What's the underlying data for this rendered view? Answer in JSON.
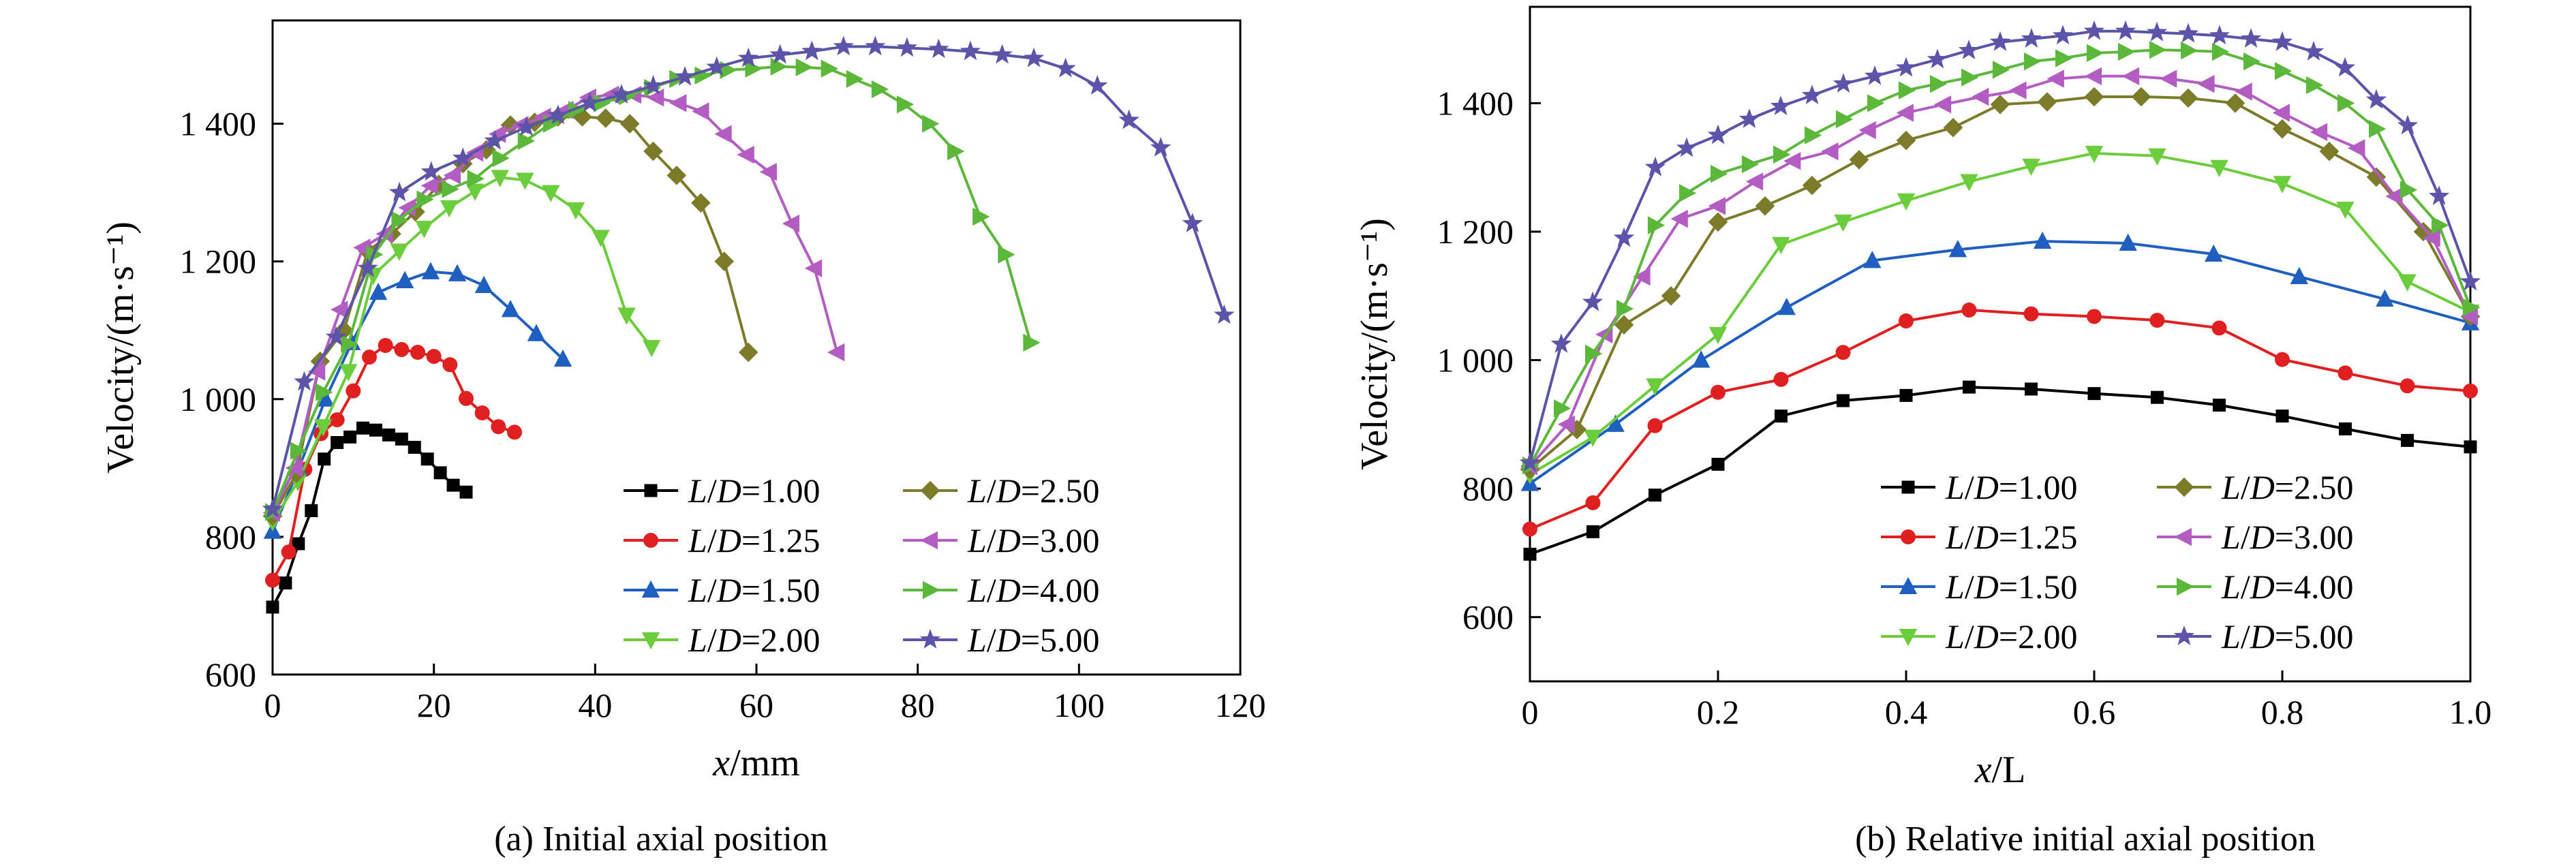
{
  "colors": {
    "L/D=1.00": "#000000",
    "L/D=1.25": "#e02020",
    "L/D=1.50": "#1f5fbf",
    "L/D=2.00": "#6ccd3c",
    "L/D=2.50": "#7b7b2a",
    "L/D=3.00": "#b35cc2",
    "L/D=4.00": "#5cb83a",
    "L/D=5.00": "#5c54a8"
  },
  "markers": {
    "L/D=1.00": "square",
    "L/D=1.25": "circle",
    "L/D=1.50": "triangle-up",
    "L/D=2.00": "triangle-down",
    "L/D=2.50": "diamond",
    "L/D=3.00": "triangle-left",
    "L/D=4.00": "triangle-right",
    "L/D=5.00": "star"
  },
  "chart_data": [
    {
      "type": "line",
      "caption": "(a) Initial axial position",
      "xlabel_italic": "x",
      "xlabel_unit": "/mm",
      "ylabel": "Velocity/(m·s⁻¹)",
      "xlim": [
        0,
        120
      ],
      "ylim": [
        600,
        1550
      ],
      "xticks": [
        0,
        20,
        40,
        60,
        80,
        100,
        120
      ],
      "xtick_labels": [
        "0",
        "20",
        "40",
        "60",
        "80",
        "100",
        "120"
      ],
      "yticks": [
        600,
        800,
        1000,
        1200,
        1400
      ],
      "ytick_labels": [
        "600",
        "800",
        "1 000",
        "1 200",
        "1 400"
      ],
      "legend_position": "bottom-right",
      "series": [
        {
          "name": "L/D=1.00",
          "x": [
            0,
            1.6,
            3.2,
            4.8,
            6.4,
            8,
            9.6,
            11.2,
            12.8,
            14.4,
            16,
            17.6,
            19.2,
            20.8,
            22.4,
            24
          ],
          "y": [
            698,
            733,
            790,
            838,
            913,
            937,
            945,
            958,
            955,
            948,
            942,
            930,
            913,
            893,
            875,
            865
          ]
        },
        {
          "name": "L/D=1.25",
          "x": [
            0,
            2,
            4,
            6,
            8,
            10,
            12,
            14,
            16,
            18,
            20,
            22,
            24,
            26,
            28,
            30
          ],
          "y": [
            737,
            778,
            898,
            950,
            970,
            1012,
            1061,
            1078,
            1072,
            1068,
            1062,
            1050,
            1001,
            980,
            960,
            952
          ]
        },
        {
          "name": "L/D=1.50",
          "x": [
            0,
            3.27,
            6.55,
            9.82,
            13.1,
            16.4,
            19.6,
            22.9,
            26.2,
            29.5,
            32.7,
            36
          ],
          "y": [
            808,
            900,
            1000,
            1082,
            1155,
            1172,
            1185,
            1182,
            1165,
            1130,
            1095,
            1058
          ]
        },
        {
          "name": "L/D=2.00",
          "x": [
            0,
            3.13,
            6.27,
            9.4,
            12.5,
            15.7,
            18.8,
            21.9,
            25.1,
            28.2,
            31.3,
            34.5,
            37.6,
            40.7,
            43.9,
            47
          ],
          "y": [
            822,
            880,
            960,
            1040,
            1180,
            1215,
            1248,
            1278,
            1302,
            1322,
            1318,
            1300,
            1275,
            1235,
            1122,
            1075
          ]
        },
        {
          "name": "L/D=2.50",
          "x": [
            0,
            2.95,
            5.9,
            8.85,
            11.8,
            14.75,
            17.7,
            20.6,
            23.6,
            26.5,
            29.5,
            32.5,
            35.4,
            38.4,
            41.3,
            44.3,
            47.2,
            50.1,
            53.1,
            56,
            59
          ],
          "y": [
            830,
            892,
            1055,
            1100,
            1215,
            1240,
            1272,
            1312,
            1342,
            1362,
            1398,
            1402,
            1410,
            1410,
            1408,
            1400,
            1360,
            1325,
            1285,
            1200,
            1068
          ]
        },
        {
          "name": "L/D=3.00",
          "x": [
            0,
            2.8,
            5.6,
            8.4,
            11.2,
            14,
            16.8,
            19.6,
            22.4,
            25.2,
            28,
            30.8,
            33.6,
            36.4,
            39.2,
            42,
            44.8,
            47.6,
            50.4,
            53.2,
            56,
            58.8,
            61.6,
            64.4,
            67.2,
            70
          ],
          "y": [
            835,
            900,
            1040,
            1130,
            1220,
            1240,
            1278,
            1310,
            1325,
            1358,
            1385,
            1398,
            1410,
            1420,
            1438,
            1442,
            1442,
            1438,
            1430,
            1418,
            1385,
            1355,
            1330,
            1255,
            1190,
            1068
          ]
        },
        {
          "name": "L/D=4.00",
          "x": [
            0,
            3.13,
            6.27,
            9.4,
            12.53,
            15.67,
            18.8,
            21.93,
            25.07,
            28.2,
            31.33,
            34.47,
            37.6,
            40.73,
            43.87,
            47,
            50.13,
            53.27,
            56.4,
            59.53,
            62.67,
            65.8,
            68.93,
            72.07,
            75.2,
            78.33,
            81.47,
            84.6,
            87.73,
            90.87,
            94
          ],
          "y": [
            836,
            925,
            1010,
            1080,
            1210,
            1260,
            1290,
            1305,
            1320,
            1350,
            1375,
            1400,
            1420,
            1430,
            1440,
            1452,
            1465,
            1470,
            1478,
            1480,
            1483,
            1482,
            1480,
            1465,
            1450,
            1428,
            1400,
            1360,
            1265,
            1210,
            1082
          ]
        },
        {
          "name": "L/D=5.00",
          "x": [
            0,
            3.93,
            7.87,
            11.8,
            15.73,
            19.67,
            23.6,
            27.53,
            31.47,
            35.4,
            39.33,
            43.27,
            47.2,
            51.13,
            55.07,
            59,
            62.93,
            66.87,
            70.8,
            74.73,
            78.67,
            82.6,
            86.53,
            90.47,
            94.4,
            98.33,
            102.27,
            106.2,
            110.13,
            114.07,
            118
          ],
          "y": [
            840,
            1025,
            1090,
            1190,
            1300,
            1330,
            1350,
            1375,
            1395,
            1412,
            1430,
            1442,
            1455,
            1468,
            1482,
            1495,
            1500,
            1505,
            1512,
            1512,
            1510,
            1508,
            1505,
            1500,
            1495,
            1480,
            1455,
            1405,
            1365,
            1255,
            1122
          ]
        }
      ]
    },
    {
      "type": "line",
      "caption": "(b) Relative initial axial position",
      "xlabel_italic": "x",
      "xlabel_unit": "/L",
      "ylabel": "Velocity/(m·s⁻¹)",
      "xlim": [
        0,
        1
      ],
      "ylim": [
        500,
        1550
      ],
      "xticks": [
        0,
        0.2,
        0.4,
        0.6,
        0.8,
        1.0
      ],
      "xtick_labels": [
        "0",
        "0.2",
        "0.4",
        "0.6",
        "0.8",
        "1.0"
      ],
      "yticks": [
        600,
        800,
        1000,
        1200,
        1400
      ],
      "ytick_labels": [
        "600",
        "800",
        "1 000",
        "1 200",
        "1 400"
      ],
      "legend_position": "bottom-right",
      "series": [
        {
          "name": "L/D=1.00",
          "x": [
            0,
            0.067,
            0.133,
            0.2,
            0.267,
            0.333,
            0.4,
            0.467,
            0.533,
            0.6,
            0.667,
            0.733,
            0.8,
            0.867,
            0.933,
            1.0
          ],
          "y": [
            698,
            733,
            790,
            838,
            913,
            937,
            945,
            958,
            955,
            948,
            942,
            930,
            913,
            893,
            875,
            865
          ]
        },
        {
          "name": "L/D=1.25",
          "x": [
            0,
            0.067,
            0.133,
            0.2,
            0.267,
            0.333,
            0.4,
            0.467,
            0.533,
            0.6,
            0.667,
            0.733,
            0.8,
            0.867,
            0.933,
            1.0
          ],
          "y": [
            737,
            778,
            898,
            950,
            970,
            1012,
            1061,
            1078,
            1072,
            1068,
            1062,
            1050,
            1001,
            980,
            960,
            952
          ]
        },
        {
          "name": "L/D=1.50",
          "x": [
            0,
            0.091,
            0.182,
            0.273,
            0.364,
            0.455,
            0.545,
            0.636,
            0.727,
            0.818,
            0.909,
            1.0
          ],
          "y": [
            808,
            900,
            1000,
            1082,
            1155,
            1172,
            1185,
            1182,
            1165,
            1130,
            1095,
            1058
          ]
        },
        {
          "name": "L/D=2.00",
          "x": [
            0,
            0.067,
            0.133,
            0.2,
            0.267,
            0.333,
            0.4,
            0.467,
            0.533,
            0.6,
            0.667,
            0.733,
            0.8,
            0.867,
            0.933,
            1.0
          ],
          "y": [
            822,
            880,
            960,
            1040,
            1180,
            1215,
            1248,
            1278,
            1302,
            1322,
            1318,
            1300,
            1275,
            1235,
            1122,
            1075
          ]
        },
        {
          "name": "L/D=2.50",
          "x": [
            0,
            0.05,
            0.1,
            0.15,
            0.2,
            0.25,
            0.3,
            0.35,
            0.4,
            0.45,
            0.5,
            0.55,
            0.6,
            0.65,
            0.7,
            0.75,
            0.8,
            0.85,
            0.9,
            0.95,
            1.0
          ],
          "y": [
            830,
            892,
            1055,
            1100,
            1215,
            1240,
            1272,
            1312,
            1342,
            1362,
            1398,
            1402,
            1410,
            1410,
            1408,
            1400,
            1360,
            1325,
            1285,
            1200,
            1068
          ]
        },
        {
          "name": "L/D=3.00",
          "x": [
            0,
            0.04,
            0.08,
            0.12,
            0.16,
            0.2,
            0.24,
            0.28,
            0.32,
            0.36,
            0.4,
            0.44,
            0.48,
            0.52,
            0.56,
            0.6,
            0.64,
            0.68,
            0.72,
            0.76,
            0.8,
            0.84,
            0.88,
            0.92,
            0.96,
            1.0
          ],
          "y": [
            835,
            900,
            1040,
            1130,
            1220,
            1240,
            1278,
            1310,
            1325,
            1358,
            1385,
            1398,
            1410,
            1420,
            1438,
            1442,
            1442,
            1438,
            1430,
            1418,
            1385,
            1355,
            1330,
            1255,
            1190,
            1068
          ]
        },
        {
          "name": "L/D=4.00",
          "x": [
            0,
            0.0333,
            0.0667,
            0.1,
            0.1333,
            0.1667,
            0.2,
            0.2333,
            0.2667,
            0.3,
            0.3333,
            0.3667,
            0.4,
            0.4333,
            0.4667,
            0.5,
            0.5333,
            0.5667,
            0.6,
            0.6333,
            0.6667,
            0.7,
            0.7333,
            0.7667,
            0.8,
            0.8333,
            0.8667,
            0.9,
            0.9333,
            0.9667,
            1.0
          ],
          "y": [
            836,
            925,
            1010,
            1080,
            1210,
            1260,
            1290,
            1305,
            1320,
            1350,
            1375,
            1400,
            1420,
            1430,
            1440,
            1452,
            1465,
            1470,
            1478,
            1480,
            1483,
            1482,
            1480,
            1465,
            1450,
            1428,
            1400,
            1360,
            1265,
            1210,
            1082
          ]
        },
        {
          "name": "L/D=5.00",
          "x": [
            0,
            0.0333,
            0.0667,
            0.1,
            0.1333,
            0.1667,
            0.2,
            0.2333,
            0.2667,
            0.3,
            0.3333,
            0.3667,
            0.4,
            0.4333,
            0.4667,
            0.5,
            0.5333,
            0.5667,
            0.6,
            0.6333,
            0.6667,
            0.7,
            0.7333,
            0.7667,
            0.8,
            0.8333,
            0.8667,
            0.9,
            0.9333,
            0.9667,
            1.0
          ],
          "y": [
            840,
            1025,
            1090,
            1190,
            1300,
            1330,
            1350,
            1375,
            1395,
            1412,
            1430,
            1442,
            1455,
            1468,
            1482,
            1495,
            1500,
            1505,
            1512,
            1512,
            1510,
            1508,
            1505,
            1500,
            1495,
            1480,
            1455,
            1405,
            1365,
            1255,
            1122
          ]
        }
      ]
    }
  ]
}
